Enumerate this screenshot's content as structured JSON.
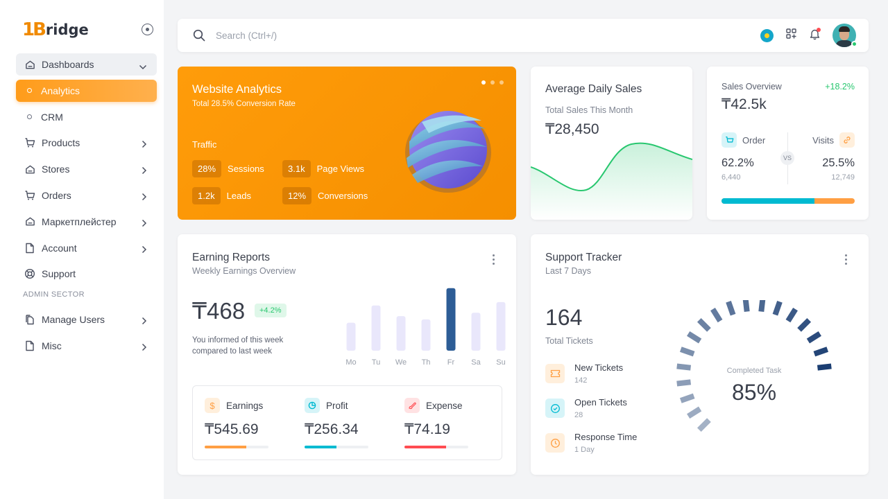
{
  "brand": {
    "mark": "1B",
    "name": "ridge"
  },
  "sidebar": {
    "items": [
      {
        "label": "Dashboards",
        "icon": "home-icon"
      },
      {
        "label": "Analytics",
        "icon": "circle-icon"
      },
      {
        "label": "CRM",
        "icon": "circle-icon"
      },
      {
        "label": "Products",
        "icon": "cart-icon"
      },
      {
        "label": "Stores",
        "icon": "home-icon"
      },
      {
        "label": "Orders",
        "icon": "cart-icon"
      },
      {
        "label": "Маркетплейстер",
        "icon": "home-icon"
      },
      {
        "label": "Account",
        "icon": "file-icon"
      },
      {
        "label": "Support",
        "icon": "lifebuoy-icon"
      }
    ],
    "section_label": "ADMIN SECTOR",
    "admin_items": [
      {
        "label": "Manage Users",
        "icon": "files-icon"
      },
      {
        "label": "Misc",
        "icon": "file-icon"
      }
    ]
  },
  "search": {
    "placeholder": "Search (Ctrl+/)"
  },
  "analytics": {
    "title": "Website Analytics",
    "subtitle": "Total 28.5% Conversion Rate",
    "section": "Traffic",
    "metrics": [
      {
        "value": "28%",
        "label": "Sessions"
      },
      {
        "value": "3.1k",
        "label": "Page Views"
      },
      {
        "value": "1.2k",
        "label": "Leads"
      },
      {
        "value": "12%",
        "label": "Conversions"
      }
    ]
  },
  "avg_sales": {
    "title": "Average Daily Sales",
    "subtitle": "Total Sales This Month",
    "amount": "₸28,450"
  },
  "overview": {
    "title": "Sales Overview",
    "change": "+18.2%",
    "amount": "₸42.5k",
    "order_label": "Order",
    "visits_label": "Visits",
    "vs": "VS",
    "order_pct": "62.2%",
    "order_count": "6,440",
    "visits_pct": "25.5%",
    "visits_count": "12,749",
    "order_share": 0.7
  },
  "earning": {
    "title": "Earning Reports",
    "subtitle": "Weekly Earnings Overview",
    "amount": "₸468",
    "badge": "+4.2%",
    "note_line1": "You informed of this week",
    "note_line2": "compared to last week",
    "stats": [
      {
        "label": "Earnings",
        "value": "₸545.69",
        "icon": "dollar-icon",
        "color": "#ff9f43",
        "progress": 0.65
      },
      {
        "label": "Profit",
        "value": "₸256.34",
        "icon": "pie-chart-icon",
        "color": "#00bad1",
        "progress": 0.5
      },
      {
        "label": "Expense",
        "value": "₸74.19",
        "icon": "brush-icon",
        "color": "#ff4c51",
        "progress": 0.65
      }
    ]
  },
  "chart_data": {
    "type": "bar",
    "categories": [
      "Mo",
      "Tu",
      "We",
      "Th",
      "Fr",
      "Sa",
      "Su"
    ],
    "values": [
      42,
      68,
      52,
      47,
      94,
      57,
      73
    ],
    "highlight_index": 4,
    "ylim": [
      0,
      100
    ]
  },
  "support": {
    "title": "Support Tracker",
    "subtitle": "Last 7 Days",
    "total": "164",
    "total_label": "Total Tickets",
    "items": [
      {
        "label": "New Tickets",
        "value": "142",
        "icon": "ticket-icon",
        "color": "#ff9f43"
      },
      {
        "label": "Open Tickets",
        "value": "28",
        "icon": "check-circle-icon",
        "color": "#00bad1"
      },
      {
        "label": "Response Time",
        "value": "1 Day",
        "icon": "clock-icon",
        "color": "#ff9f43"
      }
    ],
    "gauge_label": "Completed Task",
    "gauge_value": "85%",
    "gauge_fraction": 0.85
  }
}
